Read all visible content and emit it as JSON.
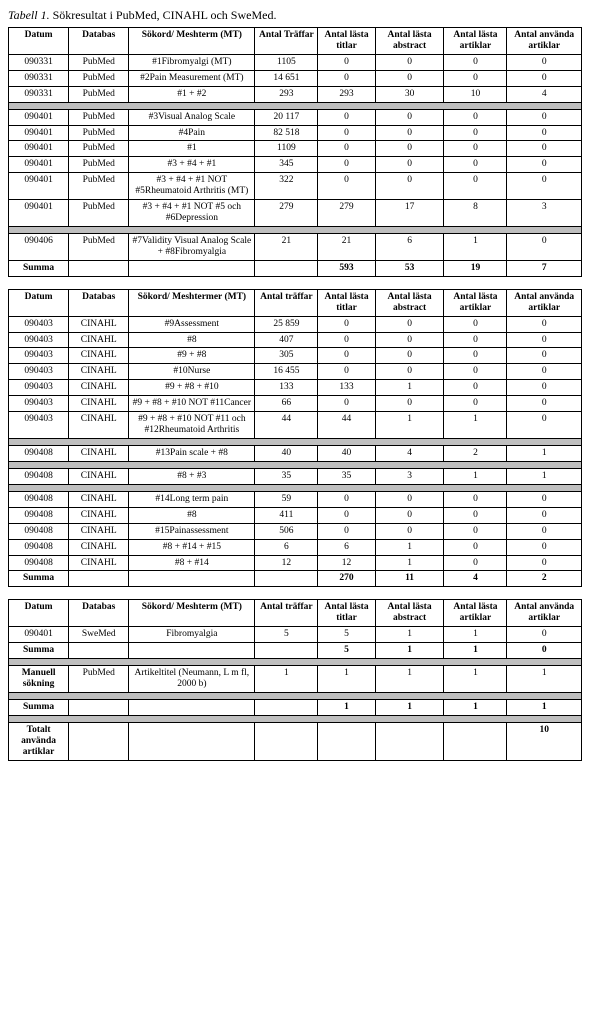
{
  "caption_prefix": "Tabell 1.",
  "caption_rest": " Sökresultat i PubMed, CINAHL och SweMed.",
  "headers": {
    "datum": "Datum",
    "databas": "Databas",
    "sokord_mt": "Sökord/ Meshterm (MT)",
    "sokord_mter": "Sökord/ Meshtermer (MT)",
    "antal_traffar": "Antal Träffar",
    "antal_traffar_lc": "Antal träffar",
    "antal_lasta_titlar": "Antal lästa titlar",
    "antal_lasta_abstract": "Antal lästa abstract",
    "antal_lasta_artiklar": "Antal lästa artiklar",
    "antal_anvanda_artiklar": "Antal använda artiklar"
  },
  "summa_label": "Summa",
  "manuell_sokning": "Manuell sökning",
  "totalt_label": "Totalt använda artiklar",
  "t1": {
    "rows1": [
      {
        "datum": "090331",
        "db": "PubMed",
        "term": "#1Fibromyalgi (MT)",
        "hits": "1105",
        "titl": "0",
        "abs": "0",
        "art": "0",
        "use": "0"
      },
      {
        "datum": "090331",
        "db": "PubMed",
        "term": "#2Pain Measurement (MT)",
        "hits": "14 651",
        "titl": "0",
        "abs": "0",
        "art": "0",
        "use": "0"
      },
      {
        "datum": "090331",
        "db": "PubMed",
        "term": "#1 + #2",
        "hits": "293",
        "titl": "293",
        "abs": "30",
        "art": "10",
        "use": "4"
      }
    ],
    "rows2": [
      {
        "datum": "090401",
        "db": "PubMed",
        "term": "#3Visual Analog Scale",
        "hits": "20 117",
        "titl": "0",
        "abs": "0",
        "art": "0",
        "use": "0"
      },
      {
        "datum": "090401",
        "db": "PubMed",
        "term": "#4Pain",
        "hits": "82 518",
        "titl": "0",
        "abs": "0",
        "art": "0",
        "use": "0"
      },
      {
        "datum": "090401",
        "db": "PubMed",
        "term": "#1",
        "hits": "1109",
        "titl": "0",
        "abs": "0",
        "art": "0",
        "use": "0"
      },
      {
        "datum": "090401",
        "db": "PubMed",
        "term": "#3 + #4 + #1",
        "hits": "345",
        "titl": "0",
        "abs": "0",
        "art": "0",
        "use": "0"
      },
      {
        "datum": "090401",
        "db": "PubMed",
        "term": "#3 + #4 + #1 NOT #5Rheumatoid Arthritis (MT)",
        "hits": "322",
        "titl": "0",
        "abs": "0",
        "art": "0",
        "use": "0"
      },
      {
        "datum": "090401",
        "db": "PubMed",
        "term": "#3 + #4 + #1 NOT #5 och #6Depression",
        "hits": "279",
        "titl": "279",
        "abs": "17",
        "art": "8",
        "use": "3"
      }
    ],
    "rows3": [
      {
        "datum": "090406",
        "db": "PubMed",
        "term": "#7Validity Visual Analog Scale + #8Fibromyalgia",
        "hits": "21",
        "titl": "21",
        "abs": "6",
        "art": "1",
        "use": "0"
      }
    ],
    "sum": {
      "titl": "593",
      "abs": "53",
      "art": "19",
      "use": "7"
    }
  },
  "t2": {
    "rows1": [
      {
        "datum": "090403",
        "db": "CINAHL",
        "term": "#9Assessment",
        "hits": "25 859",
        "titl": "0",
        "abs": "0",
        "art": "0",
        "use": "0"
      },
      {
        "datum": "090403",
        "db": "CINAHL",
        "term": "#8",
        "hits": "407",
        "titl": "0",
        "abs": "0",
        "art": "0",
        "use": "0"
      },
      {
        "datum": "090403",
        "db": "CINAHL",
        "term": "#9 + #8",
        "hits": "305",
        "titl": "0",
        "abs": "0",
        "art": "0",
        "use": "0"
      },
      {
        "datum": "090403",
        "db": "CINAHL",
        "term": "#10Nurse",
        "hits": "16 455",
        "titl": "0",
        "abs": "0",
        "art": "0",
        "use": "0"
      },
      {
        "datum": "090403",
        "db": "CINAHL",
        "term": "#9 + #8 + #10",
        "hits": "133",
        "titl": "133",
        "abs": "1",
        "art": "0",
        "use": "0"
      },
      {
        "datum": "090403",
        "db": "CINAHL",
        "term": "#9 + #8 + #10 NOT #11Cancer",
        "hits": "66",
        "titl": "0",
        "abs": "0",
        "art": "0",
        "use": "0"
      },
      {
        "datum": "090403",
        "db": "CINAHL",
        "term": "#9 + #8 + #10 NOT #11 och #12Rheumatoid Arthritis",
        "hits": "44",
        "titl": "44",
        "abs": "1",
        "art": "1",
        "use": "0"
      }
    ],
    "rows2": [
      {
        "datum": "090408",
        "db": "CINAHL",
        "term": "#13Pain scale + #8",
        "hits": "40",
        "titl": "40",
        "abs": "4",
        "art": "2",
        "use": "1"
      }
    ],
    "rows3": [
      {
        "datum": "090408",
        "db": "CINAHL",
        "term": "#8 + #3",
        "hits": "35",
        "titl": "35",
        "abs": "3",
        "art": "1",
        "use": "1"
      }
    ],
    "rows4": [
      {
        "datum": "090408",
        "db": "CINAHL",
        "term": "#14Long term pain",
        "hits": "59",
        "titl": "0",
        "abs": "0",
        "art": "0",
        "use": "0"
      },
      {
        "datum": "090408",
        "db": "CINAHL",
        "term": "#8",
        "hits": "411",
        "titl": "0",
        "abs": "0",
        "art": "0",
        "use": "0"
      },
      {
        "datum": "090408",
        "db": "CINAHL",
        "term": "#15Painassessment",
        "hits": "506",
        "titl": "0",
        "abs": "0",
        "art": "0",
        "use": "0"
      },
      {
        "datum": "090408",
        "db": "CINAHL",
        "term": "#8 + #14 + #15",
        "hits": "6",
        "titl": "6",
        "abs": "1",
        "art": "0",
        "use": "0"
      },
      {
        "datum": "090408",
        "db": "CINAHL",
        "term": "#8 + #14",
        "hits": "12",
        "titl": "12",
        "abs": "1",
        "art": "0",
        "use": "0"
      }
    ],
    "sum": {
      "titl": "270",
      "abs": "11",
      "art": "4",
      "use": "2"
    }
  },
  "t3": {
    "rows1": [
      {
        "datum": "090401",
        "db": "SweMed",
        "term": "Fibromyalgia",
        "hits": "5",
        "titl": "5",
        "abs": "1",
        "art": "1",
        "use": "0"
      }
    ],
    "sum1": {
      "titl": "5",
      "abs": "1",
      "art": "1",
      "use": "0"
    },
    "rows2": [
      {
        "datum": "Manuell sökning",
        "db": "PubMed",
        "term": "Artikeltitel (Neumann, L m fl, 2000 b)",
        "hits": "1",
        "titl": "1",
        "abs": "1",
        "art": "1",
        "use": "1"
      }
    ],
    "sum2": {
      "titl": "1",
      "abs": "1",
      "art": "1",
      "use": "1"
    },
    "total_use": "10"
  }
}
